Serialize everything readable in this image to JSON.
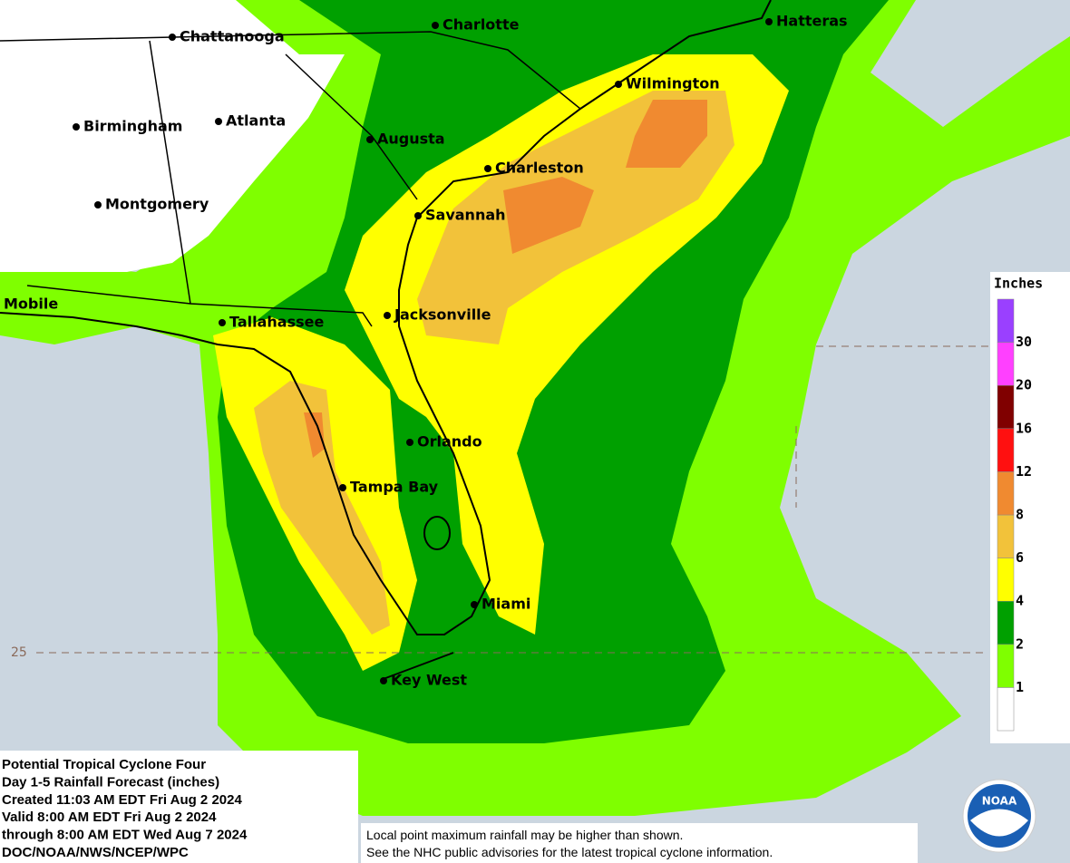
{
  "cities": [
    "Chattanooga",
    "Charlotte",
    "Hatteras",
    "Wilmington",
    "Birmingham",
    "Atlanta",
    "Augusta",
    "Charleston",
    "Montgomery",
    "Savannah",
    "Mobile",
    "Tallahassee",
    "Jacksonville",
    "Orlando",
    "Tampa Bay",
    "Miami",
    "Key West"
  ],
  "grid_label": "25",
  "legend": {
    "title": "Inches",
    "colors": [
      "#ffffff",
      "#7fff00",
      "#00a000",
      "#ffff00",
      "#f2c23a",
      "#f08a30",
      "#ff1010",
      "#800000",
      "#ff40ff",
      "#9a40ff"
    ],
    "ticks": [
      1,
      2,
      4,
      6,
      8,
      12,
      16,
      20,
      30
    ]
  },
  "info": [
    "Potential Tropical Cyclone Four",
    "Day 1-5 Rainfall Forecast (inches)",
    "Created 11:03 AM EDT Fri Aug 2 2024",
    "Valid 8:00 AM EDT Fri Aug 2 2024",
    "through 8:00 AM EDT Wed Aug 7 2024",
    "DOC/NOAA/NWS/NCEP/WPC"
  ],
  "disclaimer": [
    "Local point maximum rainfall may be higher than shown.",
    "See the NHC public advisories for the latest tropical cyclone information."
  ],
  "logo": "NOAA"
}
